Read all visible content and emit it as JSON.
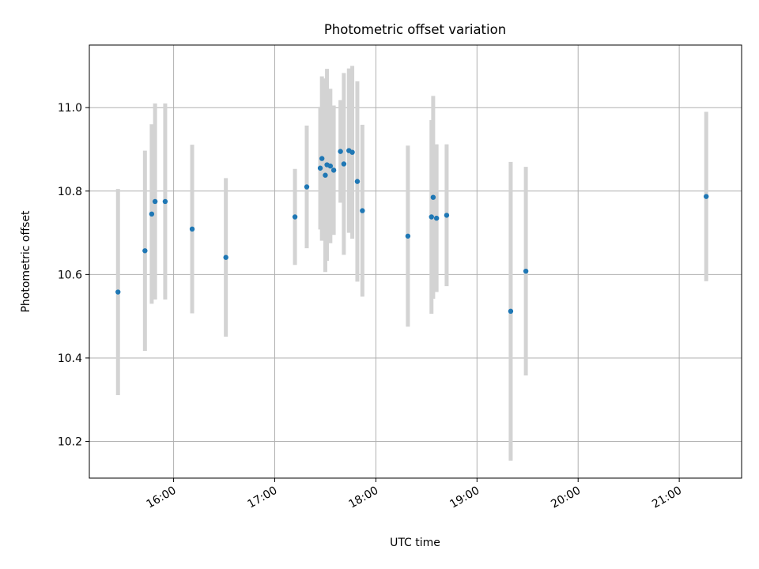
{
  "chart_data": {
    "type": "scatter",
    "title": "Photometric offset variation",
    "xlabel": "UTC time",
    "ylabel": "Photometric offset",
    "x_is_time": true,
    "xlim": [
      "15:10",
      "21:37"
    ],
    "ylim": [
      10.112,
      11.15
    ],
    "xticks": [
      "16:00",
      "17:00",
      "18:00",
      "19:00",
      "20:00",
      "21:00"
    ],
    "yticks": [
      10.2,
      10.4,
      10.6,
      10.8,
      11.0
    ],
    "ytick_labels": [
      "10.2",
      "10.4",
      "10.6",
      "10.8",
      "11.0"
    ],
    "grid": true,
    "point_color": "#1f77b4",
    "errorbar_color": "#d3d3d3",
    "points": [
      {
        "x": "15:27",
        "y": 10.558,
        "yerr": 0.247
      },
      {
        "x": "15:43",
        "y": 10.657,
        "yerr": 0.24
      },
      {
        "x": "15:47",
        "y": 10.745,
        "yerr": 0.215
      },
      {
        "x": "15:49",
        "y": 10.775,
        "yerr": 0.235
      },
      {
        "x": "15:55",
        "y": 10.775,
        "yerr": 0.235
      },
      {
        "x": "16:11",
        "y": 10.709,
        "yerr": 0.202
      },
      {
        "x": "16:31",
        "y": 10.641,
        "yerr": 0.19
      },
      {
        "x": "17:12",
        "y": 10.738,
        "yerr": 0.115
      },
      {
        "x": "17:19",
        "y": 10.81,
        "yerr": 0.147
      },
      {
        "x": "17:27",
        "y": 10.855,
        "yerr": 0.147
      },
      {
        "x": "17:28",
        "y": 10.878,
        "yerr": 0.197
      },
      {
        "x": "17:30",
        "y": 10.838,
        "yerr": 0.232
      },
      {
        "x": "17:31",
        "y": 10.863,
        "yerr": 0.23
      },
      {
        "x": "17:33",
        "y": 10.86,
        "yerr": 0.185
      },
      {
        "x": "17:35",
        "y": 10.85,
        "yerr": 0.155
      },
      {
        "x": "17:39",
        "y": 10.895,
        "yerr": 0.123
      },
      {
        "x": "17:41",
        "y": 10.865,
        "yerr": 0.218
      },
      {
        "x": "17:44",
        "y": 10.897,
        "yerr": 0.197
      },
      {
        "x": "17:46",
        "y": 10.893,
        "yerr": 0.207
      },
      {
        "x": "17:49",
        "y": 10.823,
        "yerr": 0.24
      },
      {
        "x": "17:52",
        "y": 10.753,
        "yerr": 0.206
      },
      {
        "x": "18:19",
        "y": 10.692,
        "yerr": 0.217
      },
      {
        "x": "18:33",
        "y": 10.738,
        "yerr": 0.232
      },
      {
        "x": "18:34",
        "y": 10.785,
        "yerr": 0.243
      },
      {
        "x": "18:36",
        "y": 10.735,
        "yerr": 0.177
      },
      {
        "x": "18:42",
        "y": 10.742,
        "yerr": 0.17
      },
      {
        "x": "19:20",
        "y": 10.512,
        "yerr": 0.358
      },
      {
        "x": "19:29",
        "y": 10.608,
        "yerr": 0.25
      },
      {
        "x": "21:16",
        "y": 10.787,
        "yerr": 0.203
      }
    ]
  }
}
